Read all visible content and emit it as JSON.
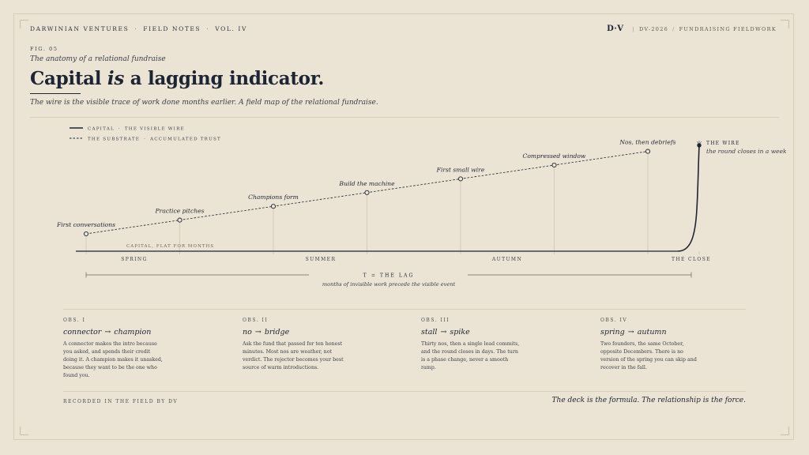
{
  "header": {
    "brand": "DARWINIAN VENTURES",
    "section": "FIELD NOTES",
    "volume": "VOL. IV",
    "logo": "D·V",
    "doc_code": "DV-2026",
    "doc_title": "FUNDRAISING FIELDWORK"
  },
  "figure": {
    "label": "FIG. 05",
    "eyebrow": "The anatomy of a relational fundraise",
    "title_pre": "Capital ",
    "title_em": "is",
    "title_post": " a lagging indicator.",
    "subtitle": "The wire is the visible trace of work done months earlier. A field map of the relational fundraise."
  },
  "chart_data": {
    "type": "line",
    "legend": [
      {
        "name": "CAPITAL",
        "desc": "THE VISIBLE WIRE",
        "style": "solid"
      },
      {
        "name": "THE SUBSTRATE",
        "desc": "ACCUMULATED TRUST",
        "style": "dashed"
      }
    ],
    "milestones": [
      {
        "label": "First conversations",
        "value": 1
      },
      {
        "label": "Practice pitches",
        "value": 2
      },
      {
        "label": "Champions form",
        "value": 3
      },
      {
        "label": "Build the machine",
        "value": 4
      },
      {
        "label": "First small wire",
        "value": 5
      },
      {
        "label": "Compressed window",
        "value": 6
      },
      {
        "label": "Nos, then debriefs",
        "value": 7
      }
    ],
    "capital_note": "CAPITAL, FLAT FOR MONTHS",
    "wire_title": "THE WIRE",
    "wire_note": "the round closes in a week",
    "seasons": [
      "SPRING",
      "SUMMER",
      "AUTUMN",
      "THE CLOSE"
    ],
    "lag_label": "T = THE LAG",
    "lag_note": "months of invisible work precede the visible event",
    "colors": {
      "ink": "#1d2433",
      "guide": "#cfc6b0",
      "axis": "#1d2433"
    }
  },
  "observations": [
    {
      "label": "OBS. I",
      "from": "connector",
      "to": "champion",
      "body": "A connector makes the intro because you asked, and spends their credit doing it. A champion makes it unasked, because they want to be the one who found you."
    },
    {
      "label": "OBS. II",
      "from": "no",
      "to": "bridge",
      "body": "Ask the fund that passed for ten honest minutes. Most nos are weather, not verdict. The rejector becomes your best source of warm introductions."
    },
    {
      "label": "OBS. III",
      "from": "stall",
      "to": "spike",
      "body": "Thirty nos, then a single lead commits, and the round closes in days. The turn is a phase change, never a smooth ramp."
    },
    {
      "label": "OBS. IV",
      "from": "spring",
      "to": "autumn",
      "body": "Two founders, the same October, opposite Decembers. There is no version of the spring you can skip and recover in the fall."
    }
  ],
  "footer": {
    "recorded": "RECORDED IN THE FIELD BY DV",
    "tagline": "The deck is the formula. The relationship is the force."
  }
}
